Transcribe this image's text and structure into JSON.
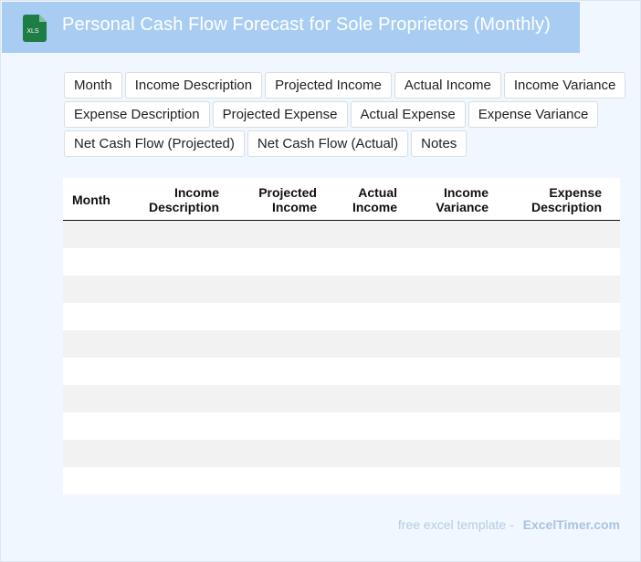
{
  "header": {
    "title": "Personal Cash Flow Forecast for Sole Proprietors (Monthly)",
    "icon": "xls-file-icon",
    "icon_label": "XLS",
    "icon_color": "#1e7d45"
  },
  "chips": {
    "row1": [
      "Month",
      "Income Description",
      "Projected Income",
      "Actual Income",
      "Income Variance"
    ],
    "row2": [
      "Expense Description",
      "Projected Expense",
      "Actual Expense",
      "Expense Variance"
    ],
    "row3": [
      "Net Cash Flow (Projected)",
      "Net Cash Flow (Actual)",
      "Notes"
    ]
  },
  "table": {
    "columns": [
      {
        "l1": "Month",
        "l2": ""
      },
      {
        "l1": "Income",
        "l2": "Description"
      },
      {
        "l1": "Projected",
        "l2": "Income"
      },
      {
        "l1": "Actual",
        "l2": "Income"
      },
      {
        "l1": "Income",
        "l2": "Variance"
      },
      {
        "l1": "Expense",
        "l2": "Description"
      }
    ],
    "row_count": 10
  },
  "footer": {
    "prefix": "free excel template -",
    "brand": "ExcelTimer.com"
  }
}
